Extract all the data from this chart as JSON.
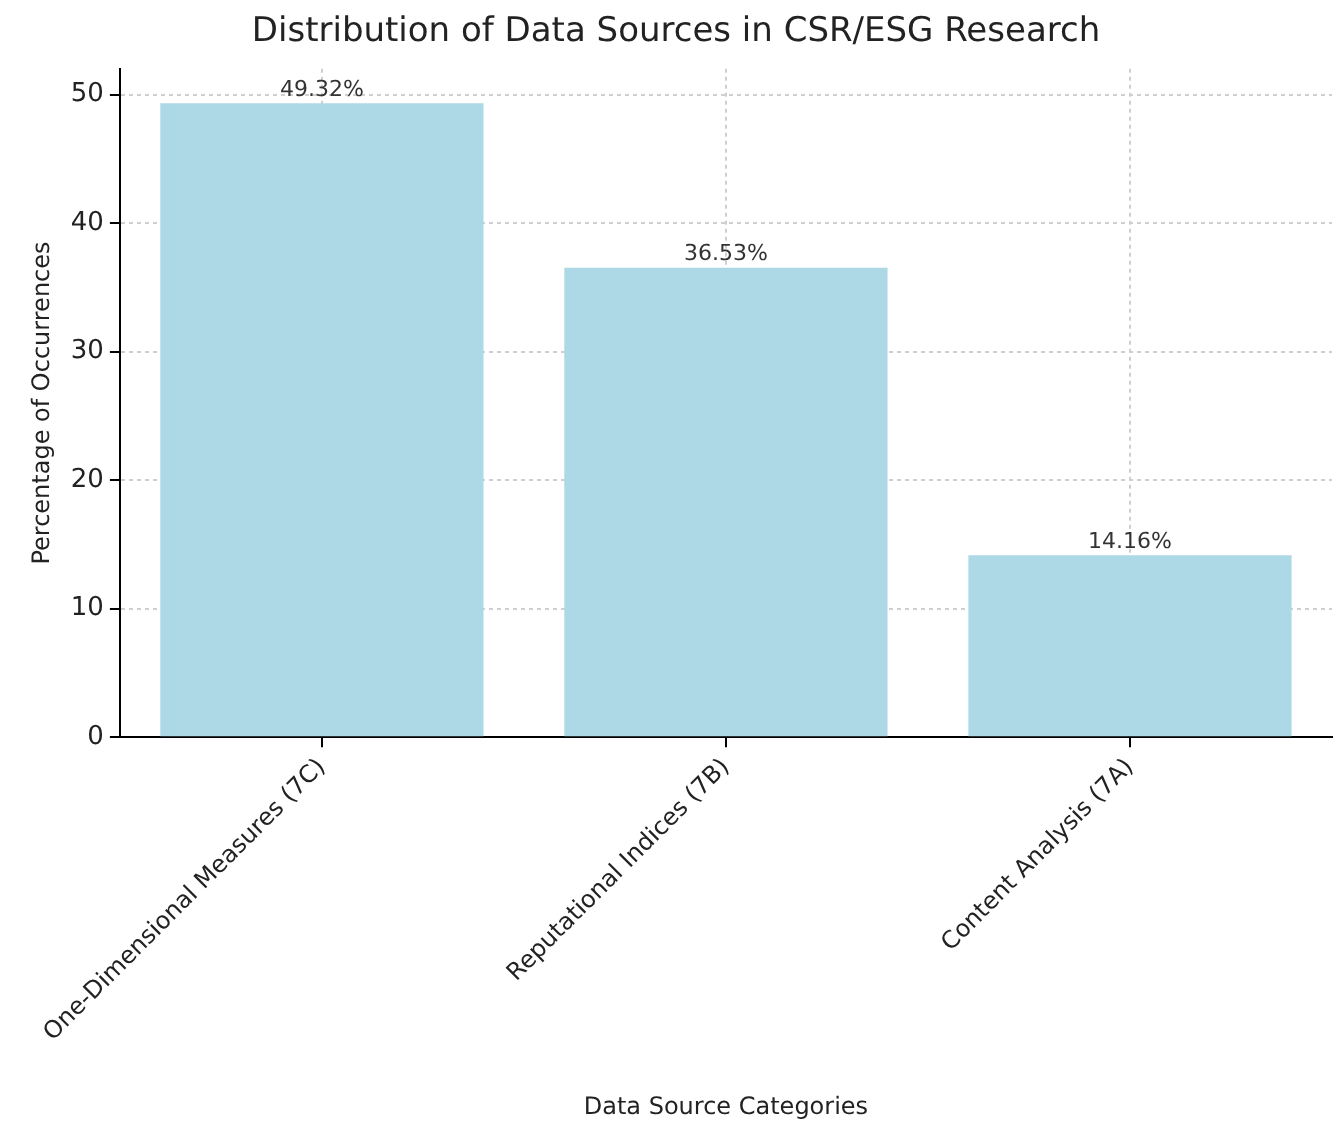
{
  "chart_data": {
    "type": "bar",
    "title": "Distribution of Data Sources in CSR/ESG Research",
    "xlabel": "Data Source Categories",
    "ylabel": "Percentage of Occurrences",
    "categories": [
      "One-Dimensional Measures (7C)",
      "Reputational Indices (7B)",
      "Content Analysis (7A)"
    ],
    "values": [
      49.32,
      36.53,
      14.16
    ],
    "value_labels": [
      "49.32%",
      "36.53%",
      "14.16%"
    ],
    "color": "#add8e6",
    "ylim": [
      0,
      52
    ],
    "yticks": [
      0,
      10,
      20,
      30,
      40,
      50
    ],
    "grid": true,
    "legend": false
  }
}
